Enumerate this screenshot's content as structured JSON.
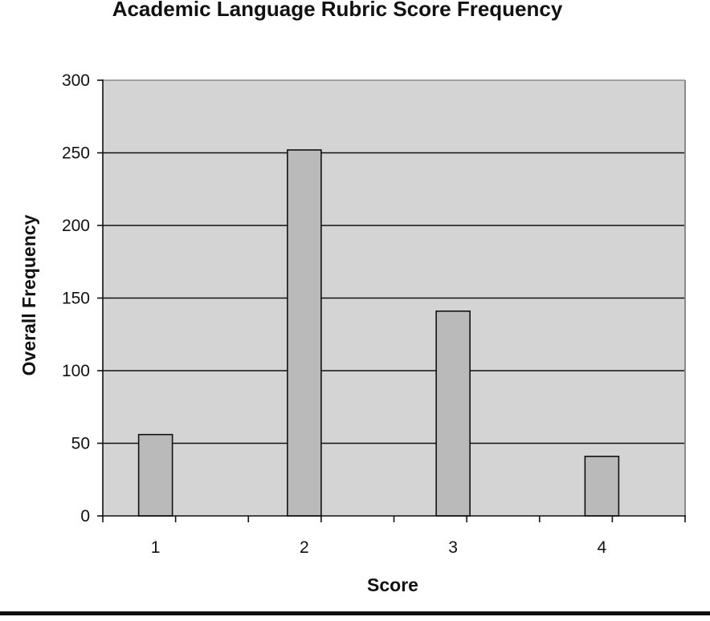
{
  "chart_data": {
    "type": "bar",
    "title": "Academic Language Rubric Score Frequency",
    "xlabel": "Score",
    "ylabel": "Overall Frequency",
    "categories": [
      "1",
      "2",
      "3",
      "4"
    ],
    "values": [
      56,
      252,
      141,
      41
    ],
    "ylim": [
      0,
      300
    ],
    "yticks": [
      "0",
      "50",
      "100",
      "150",
      "200",
      "250",
      "300"
    ],
    "grid": true,
    "legend": "none",
    "colors": {
      "plot_background": "#d4d4d4",
      "bar_fill": "#bababa",
      "bar_stroke": "#111111",
      "gridline": "#111111",
      "plot_border": "#8a8a8a"
    }
  }
}
